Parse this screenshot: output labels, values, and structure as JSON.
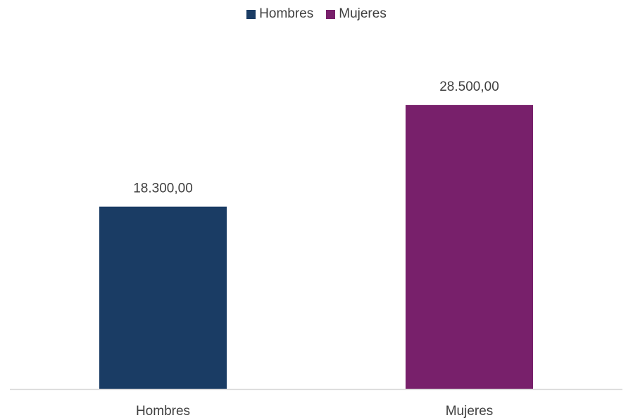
{
  "chart_data": {
    "type": "bar",
    "categories": [
      "Hombres",
      "Mujeres"
    ],
    "values": [
      18300,
      28500
    ],
    "data_labels": [
      "18.300,00",
      "28.500,00"
    ],
    "colors": [
      "#1a3c64",
      "#78206b"
    ],
    "ylim": [
      0,
      35000
    ],
    "grid": false,
    "legend": {
      "position": "top",
      "entries": [
        {
          "name": "Hombres",
          "color": "#1a3c64"
        },
        {
          "name": "Mujeres",
          "color": "#78206b"
        }
      ]
    },
    "axis_color": "#d9d9d9"
  }
}
